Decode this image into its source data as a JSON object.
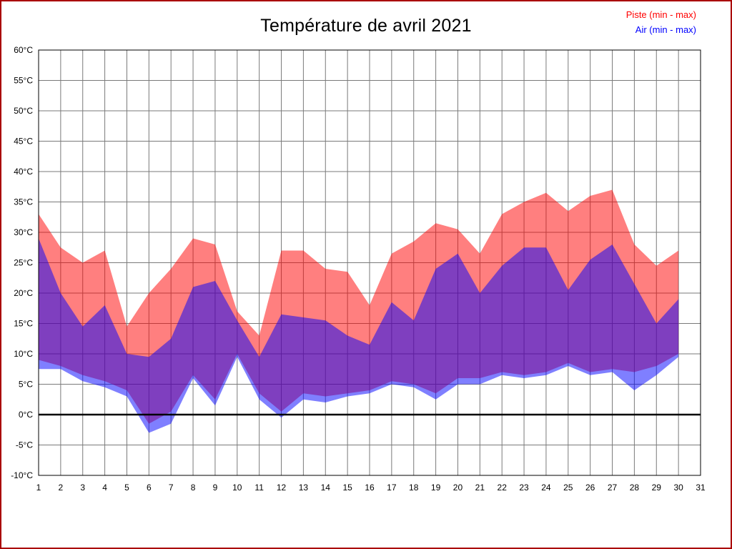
{
  "page": {
    "border_color": "#aa0000",
    "background": "#ffffff"
  },
  "header": {
    "title": "Température de avril 2021"
  },
  "legend": [
    {
      "id": "piste",
      "label": "Piste (min - max)",
      "color": "#ff0000"
    },
    {
      "id": "air",
      "label": "Air (min - max)",
      "color": "#0000ff"
    }
  ],
  "chart_data": {
    "type": "area",
    "title": "Température de avril 2021",
    "xlabel": "",
    "ylabel": "",
    "xlim": [
      1,
      31
    ],
    "ylim": [
      -10,
      60
    ],
    "grid": true,
    "grid_color": "#7a7a7a",
    "zero_line": true,
    "zero_line_color": "#000000",
    "legend_position": "top-right",
    "x": [
      1,
      2,
      3,
      4,
      5,
      6,
      7,
      8,
      9,
      10,
      11,
      12,
      13,
      14,
      15,
      16,
      17,
      18,
      19,
      20,
      21,
      22,
      23,
      24,
      25,
      26,
      27,
      28,
      29,
      30
    ],
    "x_ticks": [
      1,
      2,
      3,
      4,
      5,
      6,
      7,
      8,
      9,
      10,
      11,
      12,
      13,
      14,
      15,
      16,
      17,
      18,
      19,
      20,
      21,
      22,
      23,
      24,
      25,
      26,
      27,
      28,
      29,
      30,
      31
    ],
    "y_ticks": [
      -10,
      -5,
      0,
      5,
      10,
      15,
      20,
      25,
      30,
      35,
      40,
      45,
      50,
      55,
      60
    ],
    "y_tick_suffix": "°C",
    "series": [
      {
        "id": "piste",
        "name": "Piste (min - max)",
        "color": "#ff0000",
        "opacity": 0.5,
        "max": [
          33,
          27.5,
          25,
          27,
          14.5,
          20,
          24,
          29,
          28,
          17,
          13,
          27,
          27,
          24,
          23.5,
          18,
          26.5,
          28.5,
          31.5,
          30.5,
          26.5,
          33,
          35,
          36.5,
          33.5,
          36,
          37,
          28,
          24.5,
          27
        ],
        "min": [
          9,
          8,
          6.5,
          5.5,
          4,
          -1.5,
          0.5,
          6.5,
          2.5,
          10,
          3.5,
          0.5,
          3.5,
          3,
          3.5,
          4,
          5.5,
          5,
          3.5,
          6,
          6,
          7,
          6.5,
          7,
          8.5,
          7,
          7.5,
          7,
          8,
          10
        ]
      },
      {
        "id": "air",
        "name": "Air (min - max)",
        "color": "#0000ff",
        "opacity": 0.5,
        "max": [
          29,
          20,
          14.5,
          18,
          10,
          9.5,
          12.5,
          21,
          22,
          15.5,
          9.5,
          16.5,
          16,
          15.5,
          13,
          11.5,
          18.5,
          15.5,
          24,
          26.5,
          20,
          24.5,
          27.5,
          27.5,
          20.5,
          25.5,
          28,
          21.5,
          15,
          19
        ],
        "min": [
          7.5,
          7.5,
          5.5,
          4.5,
          3,
          -3,
          -1.5,
          6,
          1.5,
          9.5,
          2.5,
          -0.5,
          2.5,
          2,
          3,
          3.5,
          5,
          4.5,
          2.5,
          5,
          5,
          6.5,
          6,
          6.5,
          8,
          6.5,
          7,
          4,
          6.5,
          9.5
        ]
      }
    ]
  }
}
